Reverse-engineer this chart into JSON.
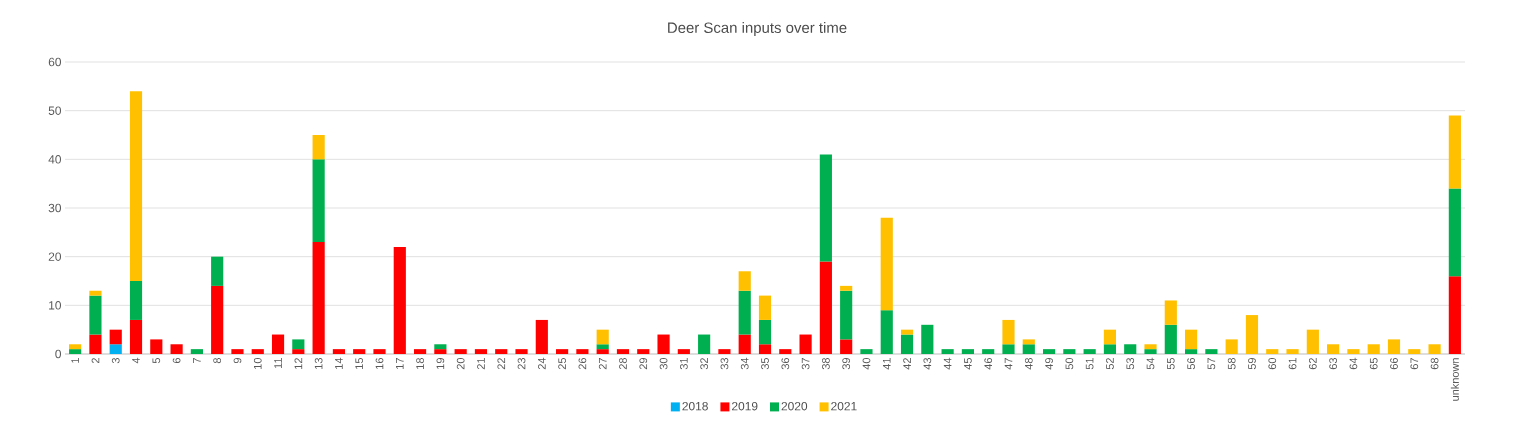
{
  "chart_data": {
    "type": "bar",
    "stacked": true,
    "title": "Deer Scan inputs over time",
    "categories": [
      "1",
      "2",
      "3",
      "4",
      "5",
      "6",
      "7",
      "8",
      "9",
      "10",
      "11",
      "12",
      "13",
      "14",
      "15",
      "16",
      "17",
      "18",
      "19",
      "20",
      "21",
      "22",
      "23",
      "24",
      "25",
      "26",
      "27",
      "28",
      "29",
      "30",
      "31",
      "32",
      "33",
      "34",
      "35",
      "36",
      "37",
      "38",
      "39",
      "40",
      "41",
      "42",
      "43",
      "44",
      "45",
      "46",
      "47",
      "48",
      "49",
      "50",
      "51",
      "52",
      "53",
      "54",
      "55",
      "56",
      "57",
      "58",
      "59",
      "60",
      "61",
      "62",
      "63",
      "64",
      "65",
      "66",
      "67",
      "68",
      "unknown"
    ],
    "series": [
      {
        "name": "2018",
        "color": "#00b0f0",
        "values": [
          null,
          null,
          2,
          null,
          null,
          null,
          null,
          null,
          null,
          null,
          null,
          null,
          null,
          null,
          null,
          null,
          null,
          null,
          null,
          null,
          null,
          null,
          null,
          null,
          null,
          null,
          null,
          null,
          null,
          null,
          null,
          null,
          null,
          null,
          null,
          null,
          null,
          null,
          null,
          null,
          null,
          null,
          null,
          null,
          null,
          null,
          null,
          null,
          null,
          null,
          null,
          null,
          null,
          null,
          null,
          null,
          null,
          null,
          null,
          null,
          null,
          null,
          null,
          null,
          null,
          null,
          null,
          null,
          null
        ]
      },
      {
        "name": "2019",
        "color": "#ff0000",
        "values": [
          null,
          4,
          3,
          7,
          3,
          2,
          null,
          14,
          1,
          1,
          4,
          1,
          23,
          1,
          1,
          1,
          22,
          1,
          1,
          1,
          1,
          1,
          1,
          7,
          1,
          1,
          1,
          1,
          1,
          4,
          1,
          null,
          1,
          4,
          2,
          1,
          4,
          19,
          3,
          null,
          null,
          null,
          null,
          null,
          null,
          null,
          null,
          null,
          null,
          null,
          null,
          null,
          null,
          null,
          null,
          null,
          null,
          null,
          null,
          null,
          null,
          null,
          null,
          null,
          null,
          null,
          null,
          null,
          16
        ]
      },
      {
        "name": "2020",
        "color": "#00b050",
        "values": [
          1,
          8,
          null,
          8,
          null,
          null,
          1,
          6,
          null,
          null,
          null,
          2,
          17,
          null,
          null,
          null,
          null,
          null,
          1,
          null,
          null,
          null,
          null,
          null,
          null,
          null,
          1,
          null,
          null,
          null,
          null,
          4,
          null,
          9,
          5,
          null,
          null,
          22,
          10,
          1,
          9,
          4,
          6,
          1,
          1,
          1,
          2,
          2,
          1,
          1,
          1,
          2,
          2,
          1,
          6,
          1,
          1,
          null,
          null,
          null,
          null,
          null,
          null,
          null,
          null,
          null,
          null,
          null,
          18
        ]
      },
      {
        "name": "2021",
        "color": "#ffc000",
        "values": [
          1,
          1,
          null,
          39,
          null,
          null,
          null,
          null,
          null,
          null,
          null,
          null,
          5,
          null,
          null,
          null,
          null,
          null,
          null,
          null,
          null,
          null,
          null,
          null,
          null,
          null,
          3,
          null,
          null,
          null,
          null,
          null,
          null,
          4,
          5,
          null,
          null,
          null,
          1,
          null,
          19,
          1,
          null,
          null,
          null,
          null,
          5,
          1,
          null,
          null,
          null,
          3,
          null,
          1,
          5,
          4,
          null,
          3,
          8,
          1,
          1,
          5,
          2,
          1,
          2,
          3,
          1,
          2,
          15
        ]
      }
    ],
    "ylim": [
      0,
      60
    ],
    "yticks": [
      0,
      10,
      20,
      30,
      40,
      50,
      60
    ],
    "grid": "y",
    "legend": "bottom"
  }
}
